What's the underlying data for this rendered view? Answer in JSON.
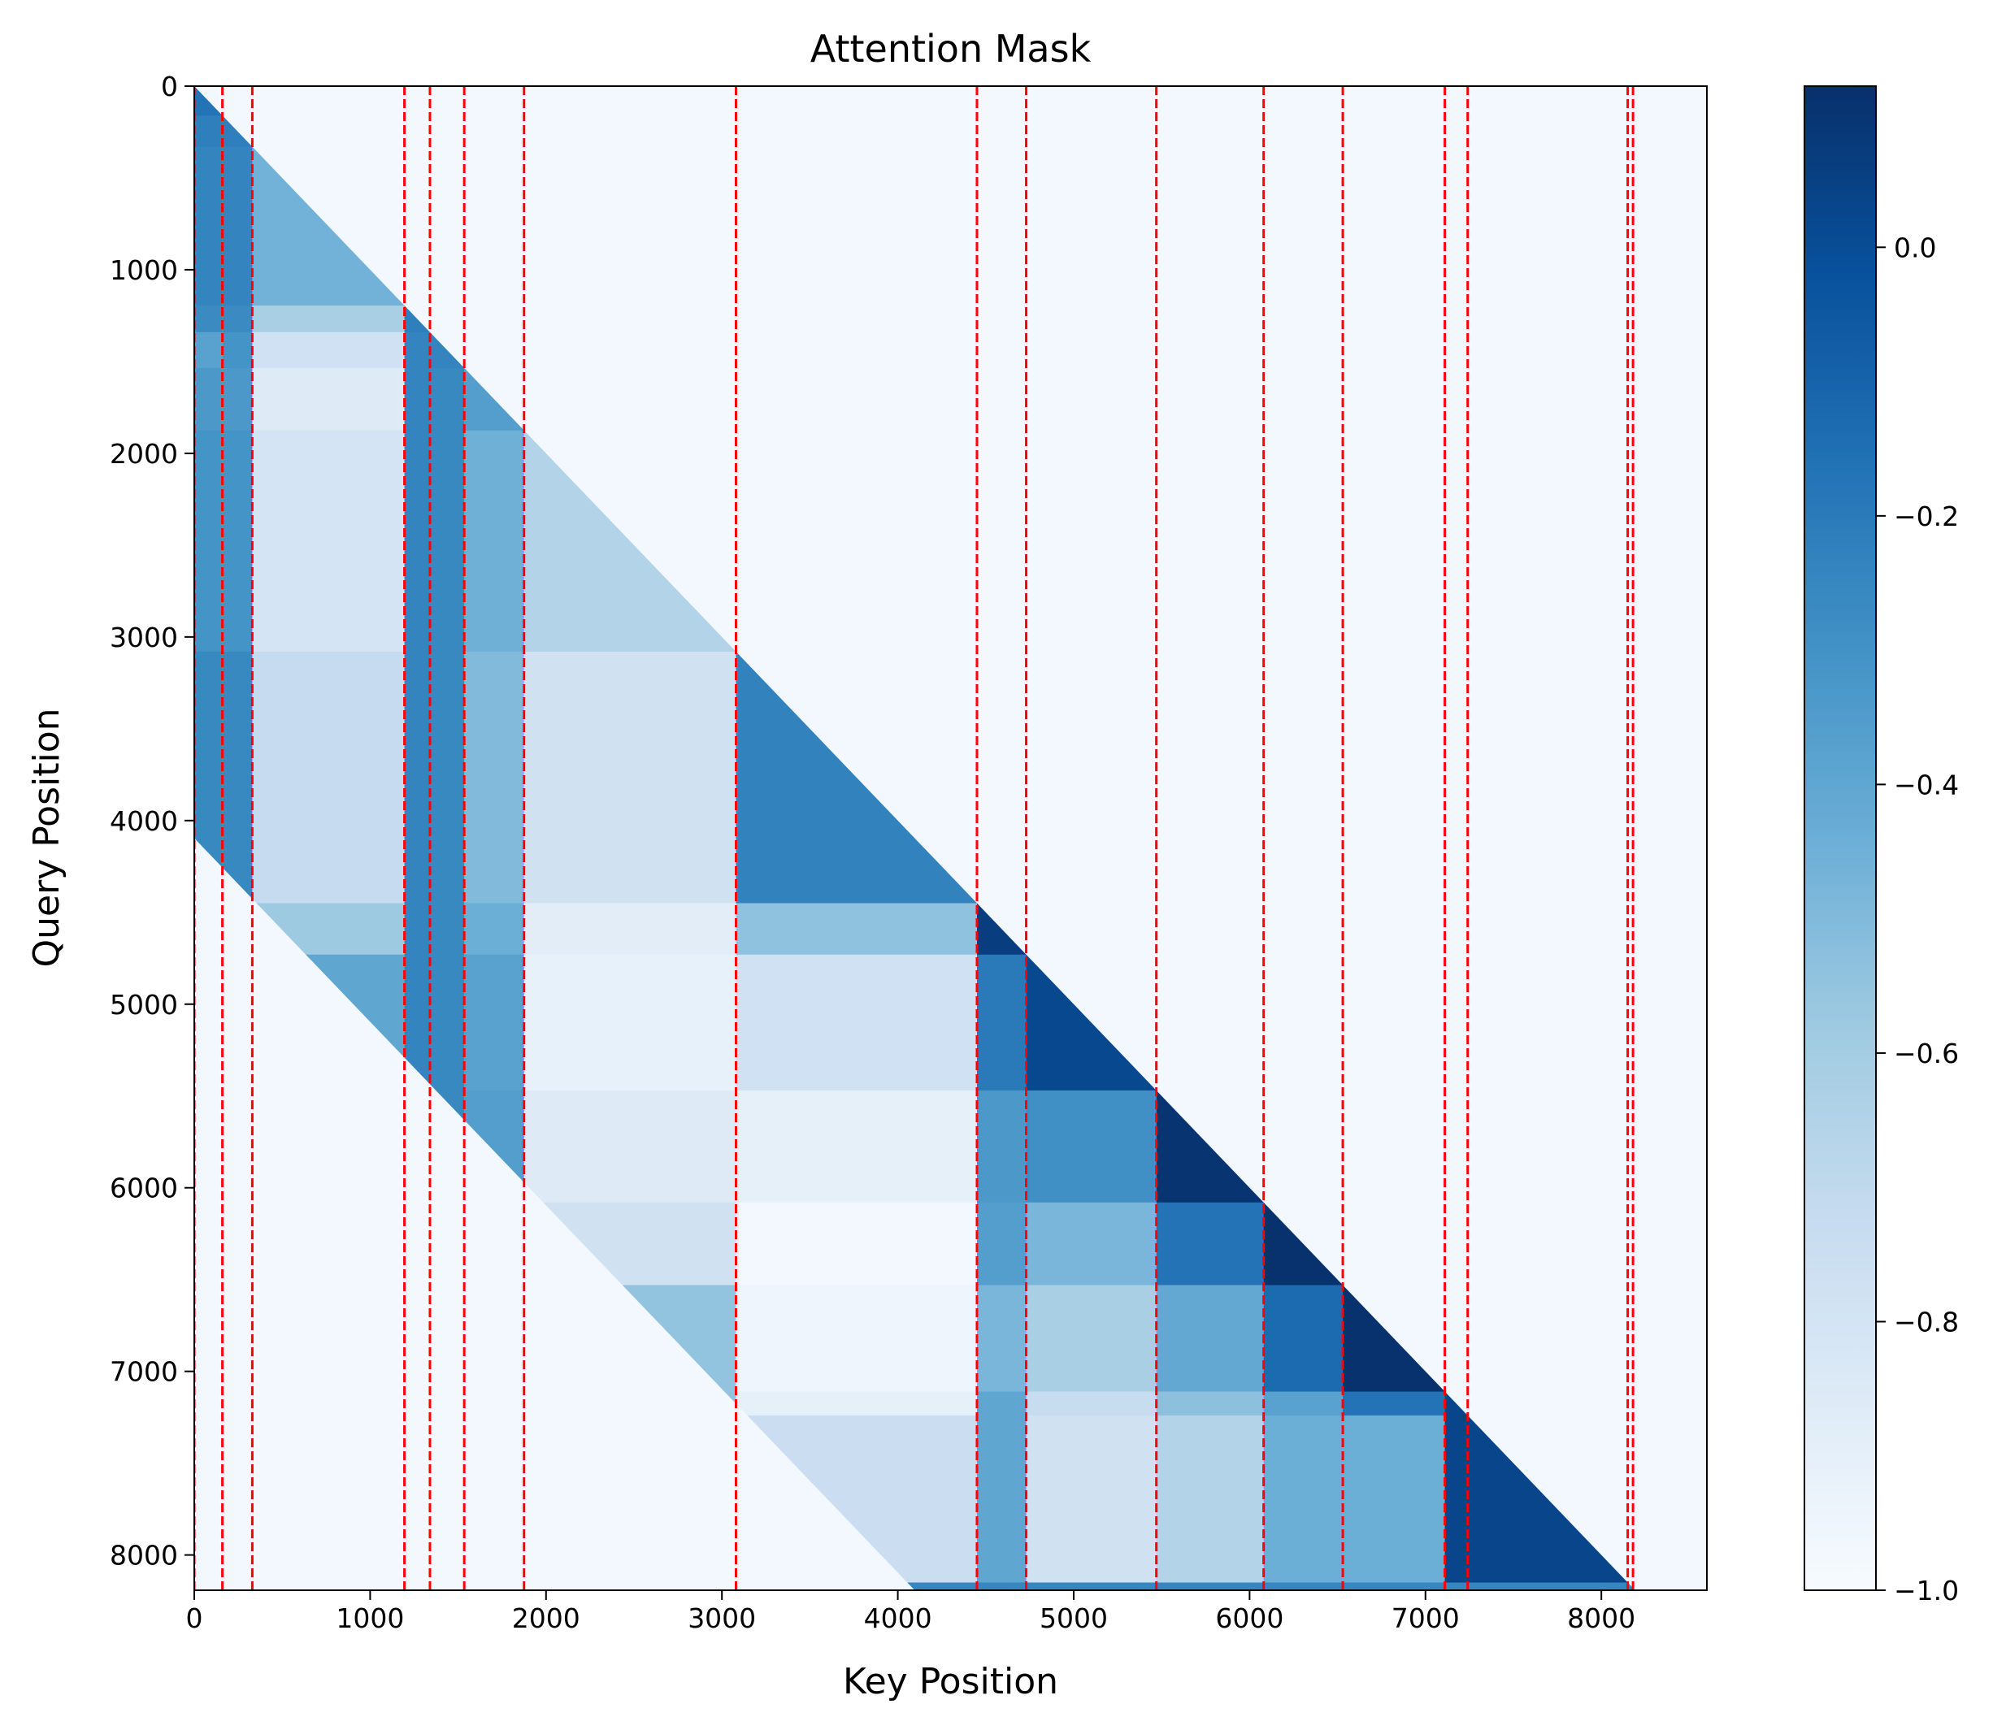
{
  "chart_data": {
    "type": "heatmap",
    "title": "Attention Mask",
    "xlabel": "Key Position",
    "ylabel": "Query Position",
    "xlim": [
      0,
      8600
    ],
    "ylim": [
      8192,
      0
    ],
    "x_ticks": [
      0,
      1000,
      2000,
      3000,
      4000,
      5000,
      6000,
      7000,
      8000
    ],
    "y_ticks": [
      0,
      1000,
      2000,
      3000,
      4000,
      5000,
      6000,
      7000,
      8000
    ],
    "x_tick_labels": [
      "0",
      "1000",
      "2000",
      "3000",
      "4000",
      "5000",
      "6000",
      "7000",
      "8000"
    ],
    "y_tick_labels": [
      "0",
      "1000",
      "2000",
      "3000",
      "4000",
      "5000",
      "6000",
      "7000",
      "8000"
    ],
    "colorbar": {
      "min": -1.0,
      "max": 0.12,
      "colormap": "Blues",
      "ticks": [
        0.0,
        -0.2,
        -0.4,
        -0.6,
        -0.8,
        -1.0
      ],
      "tick_labels": [
        "0.0",
        "−0.2",
        "−0.4",
        "−0.6",
        "−0.8",
        "−1.0"
      ]
    },
    "segment_boundaries": [
      0,
      160,
      330,
      1195,
      1340,
      1535,
      1875,
      3080,
      4450,
      4730,
      5470,
      6080,
      6530,
      7110,
      7240,
      8150,
      8180
    ],
    "background_value": -0.97,
    "attention_window": 4096,
    "row_bands": [
      {
        "y": [
          0,
          160
        ],
        "cells": [
          [
            0,
            160,
            -0.17
          ]
        ]
      },
      {
        "y": [
          160,
          330
        ],
        "cells": [
          [
            0,
            160,
            -0.22
          ],
          [
            160,
            330,
            -0.22
          ]
        ]
      },
      {
        "y": [
          330,
          1195
        ],
        "cells": [
          [
            0,
            330,
            -0.24
          ],
          [
            330,
            1195,
            -0.46
          ]
        ]
      },
      {
        "y": [
          1195,
          1340
        ],
        "cells": [
          [
            0,
            330,
            -0.27
          ],
          [
            330,
            1195,
            -0.62
          ],
          [
            1195,
            1340,
            -0.22
          ]
        ]
      },
      {
        "y": [
          1340,
          1535
        ],
        "cells": [
          [
            0,
            160,
            -0.38
          ],
          [
            160,
            330,
            -0.31
          ],
          [
            330,
            1195,
            -0.77
          ],
          [
            1195,
            1340,
            -0.24
          ],
          [
            1340,
            1535,
            -0.24
          ]
        ]
      },
      {
        "y": [
          1535,
          1875
        ],
        "cells": [
          [
            0,
            330,
            -0.33
          ],
          [
            330,
            1195,
            -0.86
          ],
          [
            1195,
            1340,
            -0.24
          ],
          [
            1340,
            1535,
            -0.26
          ],
          [
            1535,
            1875,
            -0.36
          ]
        ]
      },
      {
        "y": [
          1875,
          3080
        ],
        "cells": [
          [
            0,
            330,
            -0.31
          ],
          [
            330,
            1195,
            -0.8
          ],
          [
            1195,
            1340,
            -0.24
          ],
          [
            1340,
            1535,
            -0.26
          ],
          [
            1535,
            1875,
            -0.45
          ],
          [
            1875,
            3080,
            -0.65
          ]
        ]
      },
      {
        "y": [
          3080,
          4450
        ],
        "cells": [
          [
            0,
            330,
            -0.26
          ],
          [
            330,
            1195,
            -0.72
          ],
          [
            1195,
            1340,
            -0.24
          ],
          [
            1340,
            1535,
            -0.26
          ],
          [
            1535,
            1875,
            -0.5
          ],
          [
            1875,
            3080,
            -0.78
          ],
          [
            3080,
            4450,
            -0.23
          ]
        ]
      },
      {
        "y": [
          4450,
          4730
        ],
        "cells": [
          [
            0,
            330,
            -0.26
          ],
          [
            330,
            1195,
            -0.58
          ],
          [
            1195,
            1340,
            -0.24
          ],
          [
            1340,
            1535,
            -0.26
          ],
          [
            1535,
            1875,
            -0.44
          ],
          [
            1875,
            3080,
            -0.88
          ],
          [
            3080,
            4450,
            -0.54
          ],
          [
            4450,
            4730,
            0.06
          ]
        ]
      },
      {
        "y": [
          4730,
          5470
        ],
        "cells": [
          [
            0,
            330,
            -0.26
          ],
          [
            330,
            1195,
            -0.4
          ],
          [
            1195,
            1340,
            -0.24
          ],
          [
            1340,
            1535,
            -0.26
          ],
          [
            1535,
            1875,
            -0.38
          ],
          [
            1875,
            3080,
            -0.91
          ],
          [
            3080,
            4450,
            -0.77
          ],
          [
            4450,
            4730,
            -0.2
          ],
          [
            4730,
            5470,
            0.02
          ]
        ]
      },
      {
        "y": [
          5470,
          6080
        ],
        "cells": [
          [
            0,
            330,
            -0.26
          ],
          [
            330,
            1195,
            -0.4
          ],
          [
            1195,
            1340,
            -0.24
          ],
          [
            1340,
            1535,
            -0.26
          ],
          [
            1535,
            1875,
            -0.36
          ],
          [
            1875,
            3080,
            -0.86
          ],
          [
            3080,
            4450,
            -0.9
          ],
          [
            4450,
            4730,
            -0.33
          ],
          [
            4730,
            5470,
            -0.29
          ],
          [
            5470,
            6080,
            0.1
          ]
        ]
      },
      {
        "y": [
          6080,
          6530
        ],
        "cells": [
          [
            1875,
            3080,
            -0.78
          ],
          [
            3080,
            4450,
            -0.97
          ],
          [
            4450,
            4730,
            -0.36
          ],
          [
            4730,
            5470,
            -0.48
          ],
          [
            5470,
            6080,
            -0.17
          ],
          [
            6080,
            6530,
            0.11
          ]
        ]
      },
      {
        "y": [
          6530,
          7110
        ],
        "cells": [
          [
            1875,
            3080,
            -0.55
          ],
          [
            3080,
            4450,
            -0.95
          ],
          [
            4450,
            4730,
            -0.48
          ],
          [
            4730,
            5470,
            -0.62
          ],
          [
            5470,
            6080,
            -0.41
          ],
          [
            6080,
            6530,
            -0.13
          ],
          [
            6530,
            7110,
            0.11
          ]
        ]
      },
      {
        "y": [
          7110,
          7240
        ],
        "cells": [
          [
            1875,
            3080,
            -0.55
          ],
          [
            3080,
            4450,
            -0.9
          ],
          [
            4450,
            4730,
            -0.4
          ],
          [
            4730,
            5470,
            -0.73
          ],
          [
            5470,
            6080,
            -0.53
          ],
          [
            6080,
            6530,
            -0.38
          ],
          [
            6530,
            7110,
            -0.17
          ],
          [
            7110,
            7240,
            0.03
          ]
        ]
      },
      {
        "y": [
          7240,
          8150
        ],
        "cells": [
          [
            3080,
            4450,
            -0.75
          ],
          [
            4450,
            4730,
            -0.4
          ],
          [
            4730,
            5470,
            -0.78
          ],
          [
            5470,
            6080,
            -0.65
          ],
          [
            6080,
            6530,
            -0.44
          ],
          [
            6530,
            7110,
            -0.44
          ],
          [
            7110,
            7240,
            0.03
          ],
          [
            7240,
            8150,
            0.03
          ]
        ]
      },
      {
        "y": [
          8150,
          8192
        ],
        "cells": [
          [
            3080,
            8150,
            -0.25
          ],
          [
            8150,
            8192,
            -0.25
          ]
        ]
      }
    ]
  }
}
